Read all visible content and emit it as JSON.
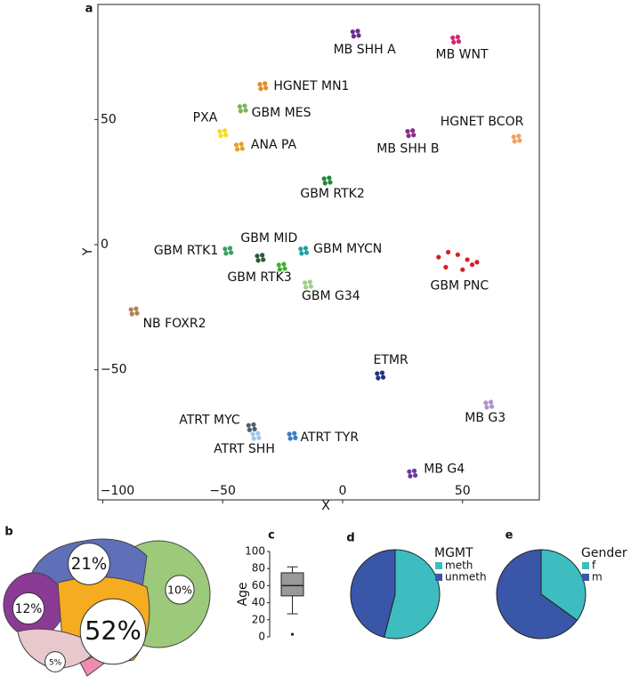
{
  "chart_data": [
    {
      "type": "scatter",
      "panel": "a",
      "xlabel": "X",
      "ylabel": "Y",
      "xlim": [
        -102,
        82
      ],
      "ylim": [
        -102,
        96
      ],
      "xticks": [
        {
          "value": -100,
          "label": "−100"
        },
        {
          "value": -50,
          "label": "−50"
        },
        0,
        50
      ],
      "yticks": [
        {
          "value": -50,
          "label": "−50"
        },
        0,
        50
      ],
      "series": [
        {
          "name": "MB SHH A",
          "color": "#6a2d8e",
          "x": [
            4.2,
            6.3,
            6.7,
            4.6
          ],
          "y": [
            85.1,
            85.4,
            83.6,
            83.3
          ]
        },
        {
          "name": "MB WNT",
          "color": "#d6266e",
          "x": [
            45.9,
            48.0,
            48.4,
            46.3
          ],
          "y": [
            82.7,
            83.0,
            81.2,
            80.9
          ]
        },
        {
          "name": "HGNET MN1",
          "color": "#e88a1a",
          "x": [
            -34.5,
            -32.4,
            -32.0,
            -34.1
          ],
          "y": [
            64.1,
            64.4,
            62.6,
            62.3
          ]
        },
        {
          "name": "GBM MES",
          "color": "#7fb55a",
          "x": [
            -42.9,
            -40.8,
            -40.4,
            -42.5
          ],
          "y": [
            55.2,
            55.5,
            53.7,
            53.4
          ]
        },
        {
          "name": "PXA",
          "color": "#f0e020",
          "x": [
            -51.2,
            -49.1,
            -48.7,
            -50.8
          ],
          "y": [
            45.3,
            45.6,
            43.8,
            43.5
          ]
        },
        {
          "name": "ANA PA",
          "color": "#e8a020",
          "x": [
            -44.3,
            -42.2,
            -41.8,
            -43.9
          ],
          "y": [
            39.9,
            40.2,
            38.4,
            38.1
          ]
        },
        {
          "name": "HGNET BCOR",
          "color": "#f0a060",
          "x": [
            71.3,
            73.4,
            73.8,
            71.7
          ],
          "y": [
            43.1,
            43.4,
            41.6,
            41.3
          ]
        },
        {
          "name": "MB SHH B",
          "color": "#8a2a8a",
          "x": [
            27.1,
            29.2,
            29.6,
            27.5
          ],
          "y": [
            45.3,
            45.6,
            43.8,
            43.5
          ]
        },
        {
          "name": "GBM RTK2",
          "color": "#1a8a3a",
          "x": [
            -7.7,
            -5.6,
            -5.2,
            -7.3
          ],
          "y": [
            26.4,
            26.7,
            24.9,
            24.6
          ]
        },
        {
          "name": "GBM RTK1",
          "color": "#3aa060",
          "x": [
            -49.0,
            -46.9,
            -46.5,
            -48.6
          ],
          "y": [
            -1.7,
            -1.4,
            -3.2,
            -3.5
          ]
        },
        {
          "name": "GBM MID",
          "color": "#2a5a3a",
          "x": [
            -35.6,
            -33.5,
            -33.1,
            -35.2
          ],
          "y": [
            -4.5,
            -4.2,
            -6.0,
            -6.3
          ]
        },
        {
          "name": "GBM MYCN",
          "color": "#20a0a0",
          "x": [
            -17.5,
            -15.4,
            -15.0,
            -17.1
          ],
          "y": [
            -1.7,
            -1.4,
            -3.2,
            -3.5
          ]
        },
        {
          "name": "GBM RTK3",
          "color": "#40b030",
          "x": [
            -26.6,
            -24.5,
            -24.1,
            -26.2
          ],
          "y": [
            -8.1,
            -7.8,
            -9.6,
            -9.9
          ]
        },
        {
          "name": "GBM G34",
          "color": "#a0d090",
          "x": [
            -15.7,
            -13.6,
            -13.2,
            -15.3
          ],
          "y": [
            -15.2,
            -14.9,
            -16.7,
            -17.0
          ]
        },
        {
          "name": "GBM PNC",
          "color": "#d62020",
          "x": [
            40,
            44,
            48,
            52,
            56,
            43,
            50,
            54
          ],
          "y": [
            -5,
            -3,
            -4,
            -6,
            -7,
            -9,
            -10,
            -8
          ]
        },
        {
          "name": "NB FOXR2",
          "color": "#b08050",
          "x": [
            -88.2,
            -86.1,
            -85.7,
            -87.8
          ],
          "y": [
            -25.9,
            -25.6,
            -27.4,
            -27.7
          ]
        },
        {
          "name": "ETMR",
          "color": "#20308a",
          "x": [
            14.4,
            16.5,
            16.9,
            14.8
          ],
          "y": [
            -51.5,
            -51.2,
            -53.0,
            -53.3
          ]
        },
        {
          "name": "MB G3",
          "color": "#b090d0",
          "x": [
            59.7,
            61.8,
            62.2,
            60.1
          ],
          "y": [
            -63.2,
            -62.9,
            -64.7,
            -65.0
          ]
        },
        {
          "name": "ATRT MYC",
          "color": "#4a6070",
          "x": [
            -39.2,
            -37.1,
            -36.7,
            -38.8
          ],
          "y": [
            -72.2,
            -71.9,
            -73.7,
            -74.0
          ]
        },
        {
          "name": "ATRT SHH",
          "color": "#a0c8e8",
          "x": [
            -37.4,
            -35.3,
            -34.9,
            -37.0
          ],
          "y": [
            -75.7,
            -75.4,
            -77.2,
            -77.5
          ]
        },
        {
          "name": "ATRT TYR",
          "color": "#3a80c0",
          "x": [
            -22.2,
            -20.1,
            -19.7,
            -21.8
          ],
          "y": [
            -75.7,
            -75.4,
            -77.2,
            -77.5
          ]
        },
        {
          "name": "MB G4",
          "color": "#6a3aa0",
          "x": [
            27.8,
            29.9,
            30.3,
            28.2
          ],
          "y": [
            -90.7,
            -90.4,
            -92.2,
            -92.5
          ]
        }
      ]
    },
    {
      "type": "brain",
      "panel": "b",
      "values": [
        21,
        12,
        52,
        10,
        5
      ],
      "value_labels": [
        "21%",
        "12%",
        "52%",
        "10%",
        "5%"
      ]
    },
    {
      "type": "box",
      "panel": "c",
      "ylabel": "Age",
      "ylim": [
        0,
        100
      ],
      "yticks": [
        0,
        20,
        40,
        60,
        80,
        100
      ],
      "whisker_low": 27,
      "q1": 48,
      "median": 60,
      "q3": 75,
      "whisker_high": 82,
      "outliers": [
        3
      ],
      "color": "#999999"
    },
    {
      "type": "pie",
      "panel": "d",
      "legend_title": "MGMT",
      "categories": [
        "meth",
        "unmeth"
      ],
      "values": [
        54,
        46
      ],
      "colors": [
        "#3dbdc0",
        "#3a56a8"
      ]
    },
    {
      "type": "pie",
      "panel": "e",
      "legend_title": "Gender",
      "categories": [
        "f",
        "m"
      ],
      "values": [
        35,
        65
      ],
      "colors": [
        "#3dbdc0",
        "#3a56a8"
      ]
    }
  ]
}
